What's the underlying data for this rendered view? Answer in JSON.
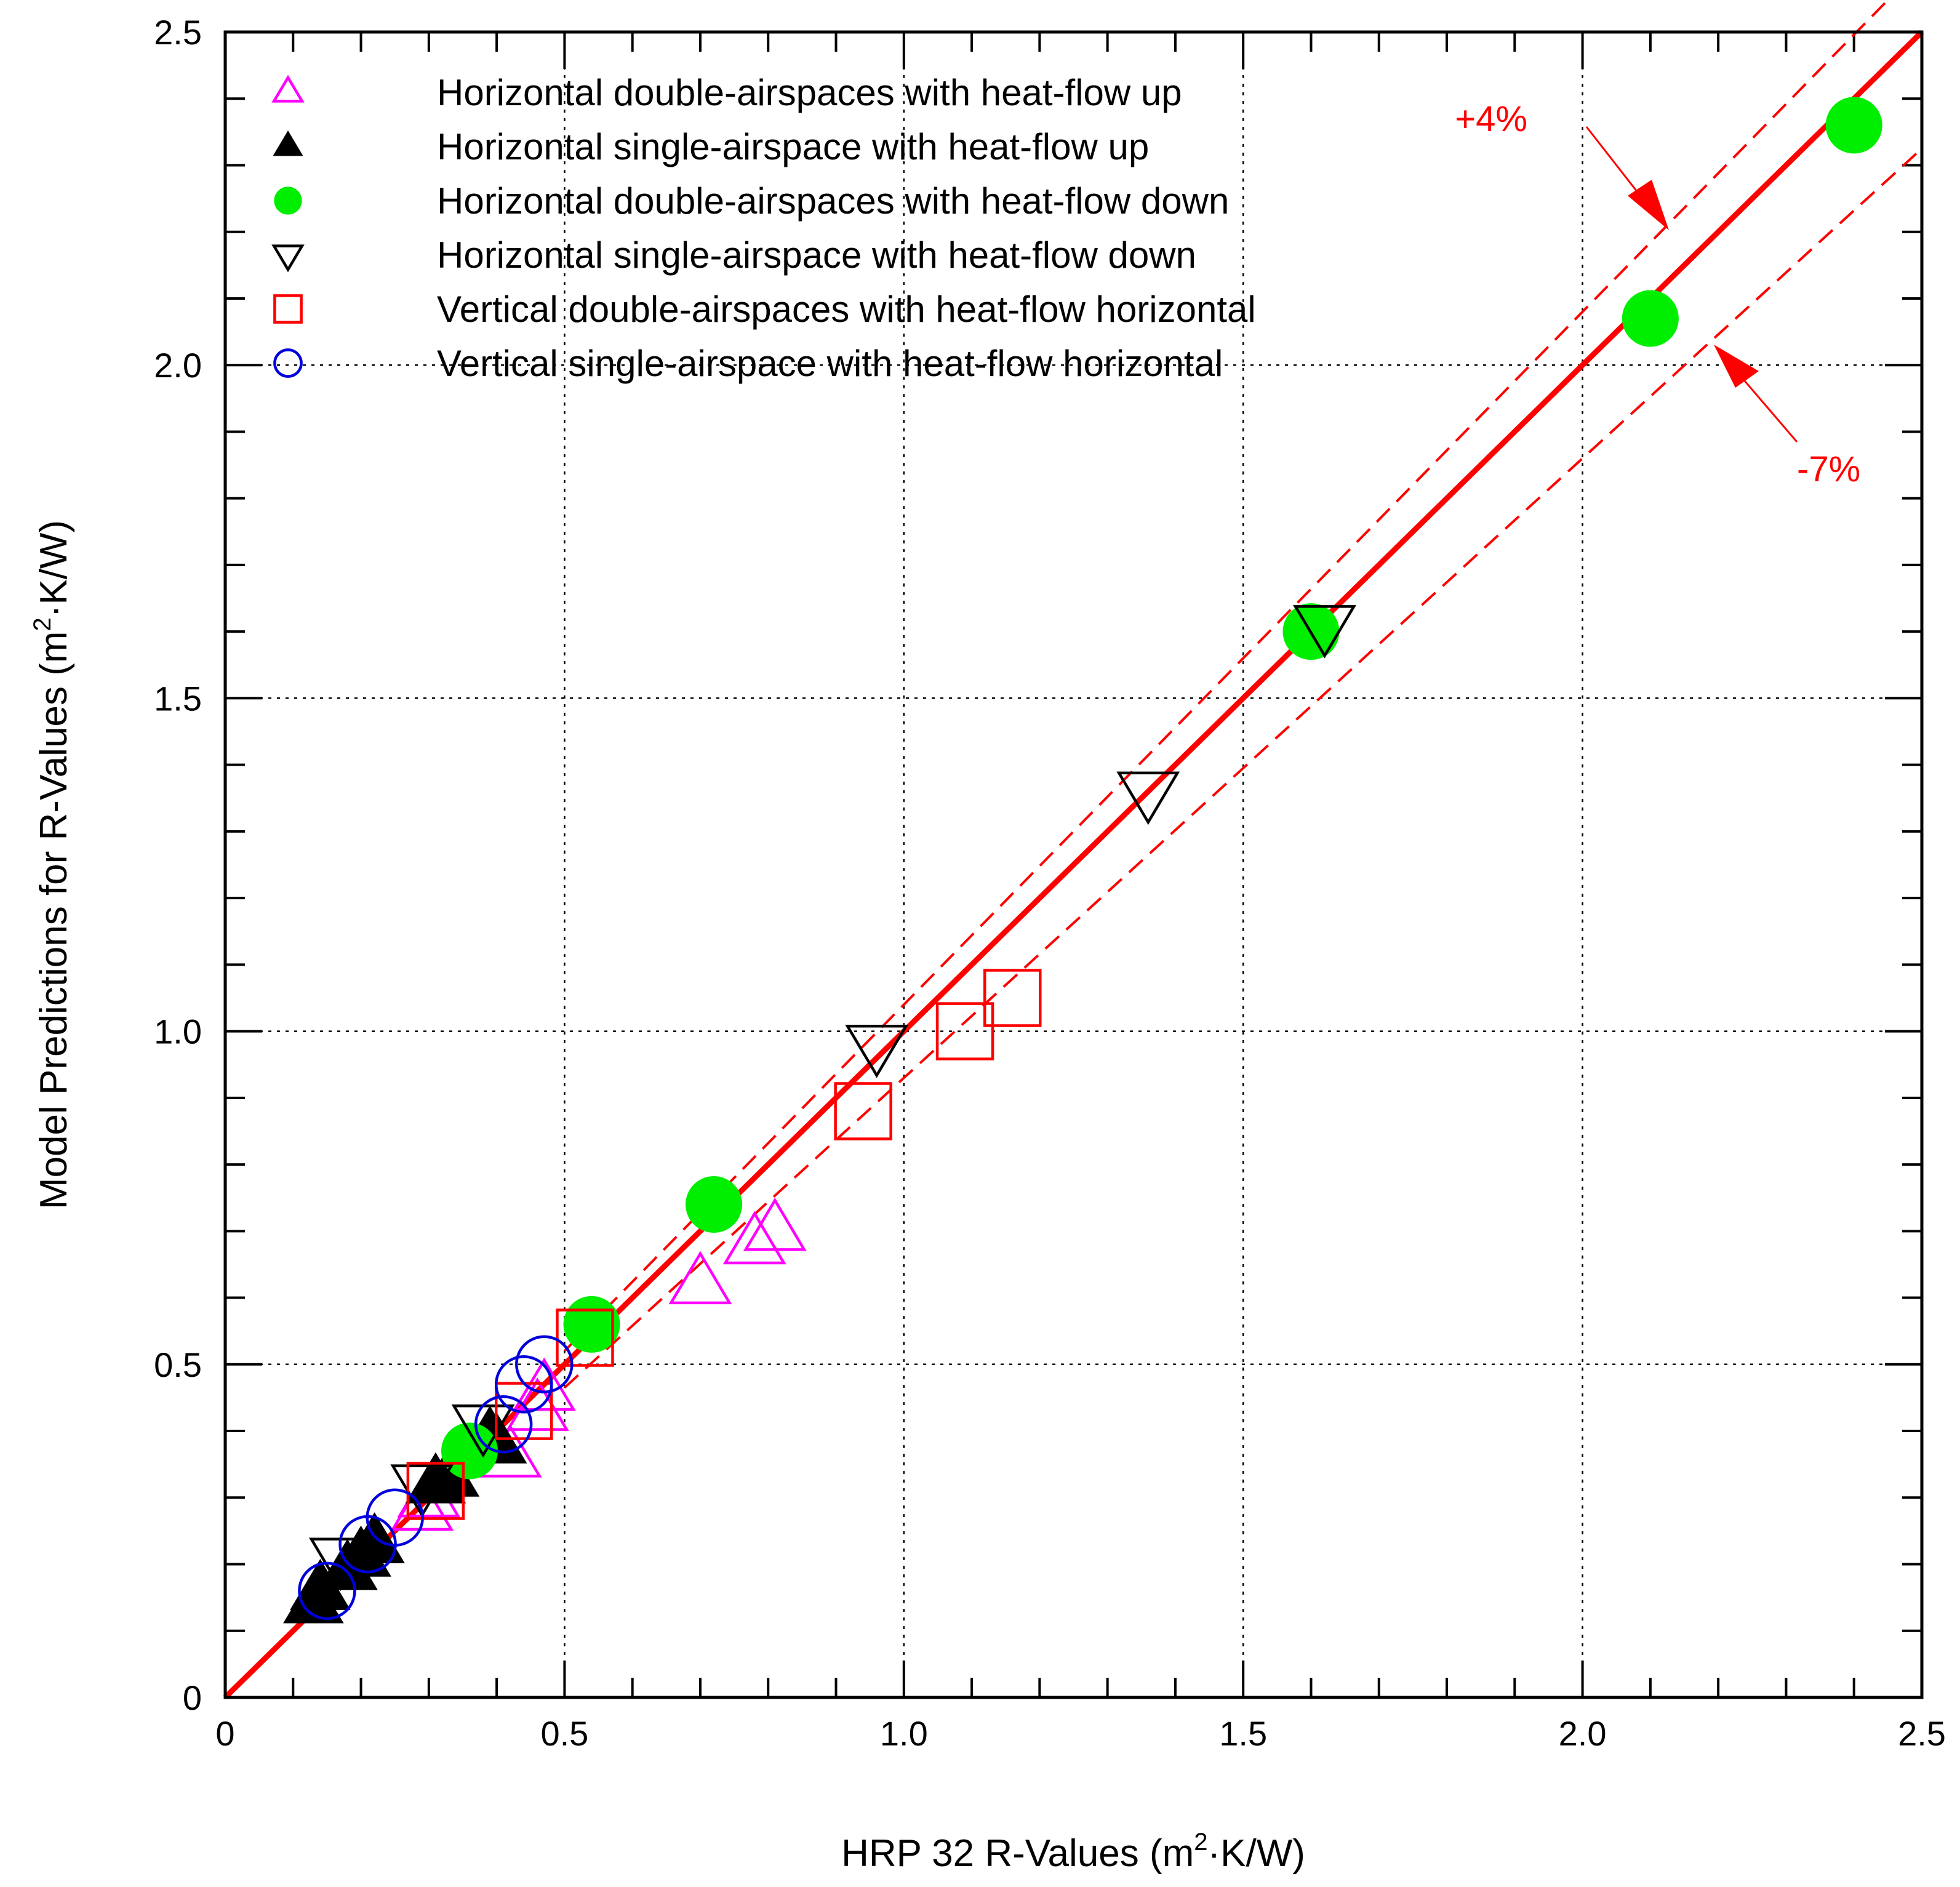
{
  "chart_data": {
    "type": "scatter",
    "xlabel": "HRP 32 R-Values (m²·K/W)",
    "ylabel": "Model Predictions for R-Values (m²·K/W)",
    "xlabel_parts": {
      "pre": "HRP 32 R-Values (m",
      "sup": "2",
      "post": "·K/W)"
    },
    "ylabel_parts": {
      "pre": "Model Predictions for R-Values (m",
      "sup": "2",
      "post": "·K/W)"
    },
    "xlim": [
      0,
      2.5
    ],
    "ylim": [
      0,
      2.5
    ],
    "xticks": [
      0,
      0.5,
      1.0,
      1.5,
      2.0,
      2.5
    ],
    "yticks": [
      0,
      0.5,
      1.0,
      1.5,
      2.0,
      2.5
    ],
    "xtick_labels": [
      "0",
      "0.5",
      "1.0",
      "1.5",
      "2.0",
      "2.5"
    ],
    "ytick_labels": [
      "0",
      "0.5",
      "1.0",
      "1.5",
      "2.0",
      "2.5"
    ],
    "minor_tick_step": 0.1,
    "grid": true,
    "legend_position": "top-left",
    "series": [
      {
        "name": "Horizontal double-airspaces with heat-flow up",
        "marker": "triangle-up-open",
        "color": "#ff00ff",
        "points": [
          [
            0.29,
            0.28
          ],
          [
            0.3,
            0.3
          ],
          [
            0.42,
            0.36
          ],
          [
            0.46,
            0.43
          ],
          [
            0.47,
            0.46
          ],
          [
            0.7,
            0.62
          ],
          [
            0.78,
            0.68
          ],
          [
            0.81,
            0.7
          ]
        ]
      },
      {
        "name": "Horizontal single-airspace with heat-flow up",
        "marker": "triangle-up-filled",
        "color": "#000000",
        "points": [
          [
            0.13,
            0.14
          ],
          [
            0.14,
            0.16
          ],
          [
            0.18,
            0.19
          ],
          [
            0.2,
            0.21
          ],
          [
            0.22,
            0.23
          ],
          [
            0.31,
            0.32
          ],
          [
            0.33,
            0.33
          ],
          [
            0.39,
            0.39
          ],
          [
            0.4,
            0.38
          ]
        ]
      },
      {
        "name": "Horizontal double-airspaces with heat-flow down",
        "marker": "circle-filled",
        "color": "#00ee00",
        "points": [
          [
            0.36,
            0.37
          ],
          [
            0.54,
            0.56
          ],
          [
            0.72,
            0.74
          ],
          [
            1.6,
            1.6
          ],
          [
            2.1,
            2.07
          ],
          [
            2.4,
            2.36
          ]
        ]
      },
      {
        "name": "Horizontal single-airspace with heat-flow down",
        "marker": "triangle-down-open",
        "color": "#000000",
        "points": [
          [
            0.17,
            0.21
          ],
          [
            0.29,
            0.32
          ],
          [
            0.38,
            0.41
          ],
          [
            0.96,
            0.98
          ],
          [
            1.36,
            1.36
          ],
          [
            1.62,
            1.61
          ]
        ]
      },
      {
        "name": "Vertical double-airspaces with heat-flow horizontal",
        "marker": "square-open",
        "color": "#ff0000",
        "points": [
          [
            0.31,
            0.31
          ],
          [
            0.44,
            0.43
          ],
          [
            0.53,
            0.54
          ],
          [
            0.94,
            0.88
          ],
          [
            1.09,
            1.0
          ],
          [
            1.16,
            1.05
          ]
        ]
      },
      {
        "name": "Vertical single-airspace with heat-flow horizontal",
        "marker": "circle-open",
        "color": "#0000dd",
        "points": [
          [
            0.15,
            0.16
          ],
          [
            0.21,
            0.23
          ],
          [
            0.25,
            0.27
          ],
          [
            0.41,
            0.41
          ],
          [
            0.44,
            0.47
          ],
          [
            0.47,
            0.5
          ]
        ]
      }
    ],
    "lines": [
      {
        "name": "1:1 line",
        "x": [
          0,
          2.5
        ],
        "y": [
          0,
          2.5
        ],
        "style": "solid",
        "color": "#ff0000"
      },
      {
        "name": "+4% bound",
        "x": [
          0.5,
          2.5
        ],
        "y": [
          0.52,
          2.6
        ],
        "style": "dashed",
        "color": "#ff0000"
      },
      {
        "name": "-7% bound",
        "x": [
          0.5,
          2.5
        ],
        "y": [
          0.465,
          2.325
        ],
        "style": "dashed",
        "color": "#ff0000"
      }
    ],
    "annotations": [
      {
        "text": "+4%",
        "color": "#ff0000"
      },
      {
        "text": "-7%",
        "color": "#ff0000"
      }
    ]
  }
}
